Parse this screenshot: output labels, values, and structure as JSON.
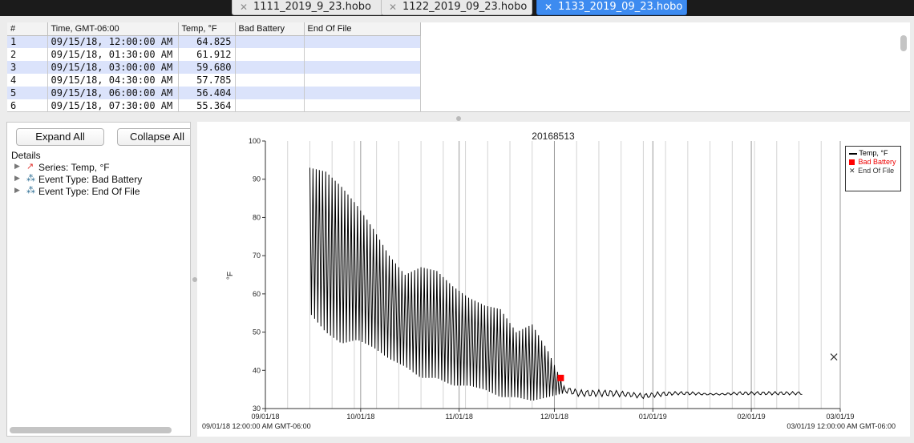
{
  "tabs": [
    {
      "label": "1111_2019_9_23.hobo",
      "close": "✕",
      "active": false
    },
    {
      "label": "1122_2019_09_23.hobo",
      "close": "✕",
      "active": false
    },
    {
      "label": "1133_2019_09_23.hobo",
      "close": "✕",
      "active": true
    }
  ],
  "table": {
    "headers": [
      "#",
      "Time, GMT-06:00",
      "Temp, °F",
      "Bad Battery",
      "End Of File"
    ],
    "rows": [
      {
        "n": "1",
        "time": "09/15/18, 12:00:00 AM",
        "temp": "64.825",
        "selected": true
      },
      {
        "n": "2",
        "time": "09/15/18, 01:30:00 AM",
        "temp": "61.912",
        "selected": false
      },
      {
        "n": "3",
        "time": "09/15/18, 03:00:00 AM",
        "temp": "59.680",
        "selected": true
      },
      {
        "n": "4",
        "time": "09/15/18, 04:30:00 AM",
        "temp": "57.785",
        "selected": false
      },
      {
        "n": "5",
        "time": "09/15/18, 06:00:00 AM",
        "temp": "56.404",
        "selected": true
      },
      {
        "n": "6",
        "time": "09/15/18, 07:30:00 AM",
        "temp": "55.364",
        "selected": false
      }
    ]
  },
  "details": {
    "expand_label": "Expand All",
    "collapse_label": "Collapse All",
    "title": "Details",
    "items": [
      {
        "label": "Series: Temp, °F",
        "icon": "series-line-icon"
      },
      {
        "label": "Event Type: Bad Battery",
        "icon": "event-icon"
      },
      {
        "label": "Event Type: End Of File",
        "icon": "event-icon"
      }
    ]
  },
  "colors": {
    "accent": "#3d8bf0",
    "series": "#000000",
    "bad_battery": "#ff0000",
    "selected_row": "#dbe3fb"
  },
  "chart_data": {
    "type": "line",
    "title": "20168513",
    "ylabel": "°F",
    "ylim": [
      30,
      100
    ],
    "yticks": [
      30,
      40,
      50,
      60,
      70,
      80,
      90,
      100
    ],
    "xlim": [
      "2018-09-01",
      "2019-03-01"
    ],
    "xticks": [
      {
        "date": "2018-09-01",
        "label": "09/01/18"
      },
      {
        "date": "2018-10-01",
        "label": "10/01/18"
      },
      {
        "date": "2018-11-01",
        "label": "11/01/18"
      },
      {
        "date": "2018-12-01",
        "label": "12/01/18"
      },
      {
        "date": "2019-01-01",
        "label": "01/01/19"
      },
      {
        "date": "2019-02-01",
        "label": "02/01/19"
      },
      {
        "date": "2019-03-01",
        "label": "03/01/19"
      }
    ],
    "range_start_label": "09/01/18 12:00:00 AM GMT-06:00",
    "range_end_label": "03/01/19 12:00:00 AM GMT-06:00",
    "grid": "vertical, weekly",
    "legend_position": "top-right",
    "series": [
      {
        "name": "Temp, °F",
        "color": "#000000",
        "x": [
          "2018-09-15",
          "2018-09-20",
          "2018-09-25",
          "2018-09-30",
          "2018-10-05",
          "2018-10-10",
          "2018-10-15",
          "2018-10-20",
          "2018-10-25",
          "2018-10-30",
          "2018-11-04",
          "2018-11-09",
          "2018-11-14",
          "2018-11-19",
          "2018-11-24",
          "2018-11-29",
          "2018-12-04",
          "2018-12-09",
          "2018-12-14",
          "2018-12-19",
          "2018-12-24",
          "2018-12-29",
          "2019-01-03",
          "2019-01-08",
          "2019-01-13",
          "2019-01-18",
          "2019-01-23",
          "2019-01-28",
          "2019-02-02",
          "2019-02-07",
          "2019-02-12",
          "2019-02-17"
        ],
        "max": [
          93,
          92,
          88,
          83,
          77,
          70,
          65,
          67,
          66,
          62,
          59,
          57,
          56,
          50,
          52,
          45,
          36,
          35,
          35,
          35,
          34.5,
          34,
          34.5,
          34.5,
          34.5,
          34,
          34,
          34.5,
          34.5,
          34.5,
          34.5,
          34.5
        ],
        "min": [
          55,
          50,
          47,
          48,
          46,
          43,
          41,
          38,
          38,
          36,
          36,
          35,
          33,
          33,
          32,
          33,
          34,
          33,
          33,
          33,
          33,
          32.5,
          33,
          33.5,
          33.5,
          33.5,
          33.5,
          33.5,
          33.5,
          33.5,
          33.5,
          33.5
        ]
      },
      {
        "name": "Bad Battery",
        "color": "#ff0000",
        "marker": "square",
        "x": [
          "2018-12-03"
        ],
        "y": [
          38
        ]
      },
      {
        "name": "End Of File",
        "color": "#333333",
        "marker": "x",
        "x": [
          "2019-02-27"
        ],
        "y": [
          43.5
        ]
      }
    ]
  }
}
